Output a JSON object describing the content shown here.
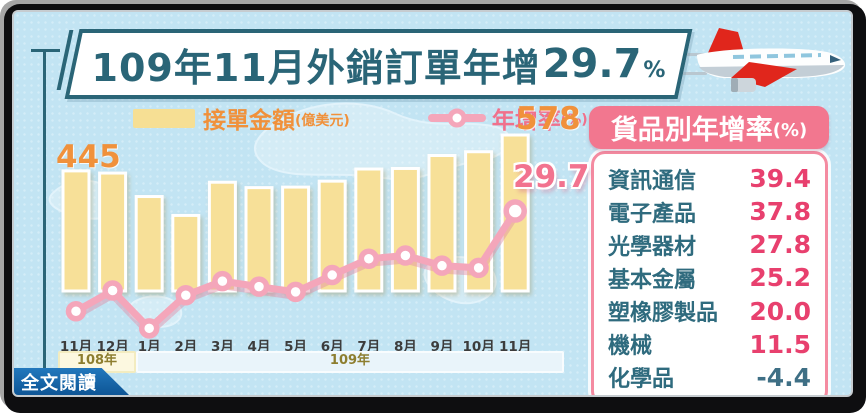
{
  "header": {
    "title_prefix": "109年11月外銷訂單年增",
    "title_value": "29.7",
    "title_unit": "%"
  },
  "legend": {
    "bar_label": "接單金額",
    "bar_unit": "(億美元)",
    "line_label": "年增率",
    "line_unit": "(%)"
  },
  "annotations": {
    "first_bar_value": "445",
    "last_bar_value": "578",
    "last_line_value": "29.7"
  },
  "chart_data": {
    "type": "bar",
    "title": "109年11月外銷訂單年增29.7%",
    "categories": [
      "11月",
      "12月",
      "1月",
      "2月",
      "3月",
      "4月",
      "5月",
      "6月",
      "7月",
      "8月",
      "9月",
      "10月",
      "11月"
    ],
    "series": [
      {
        "name": "接單金額(億美元)",
        "type": "bar",
        "values": [
          445,
          437,
          350,
          280,
          403,
          383,
          385,
          407,
          452,
          454,
          502,
          516,
          578
        ]
      },
      {
        "name": "年增率(%)",
        "type": "line",
        "values": [
          -6.6,
          0.9,
          -12.8,
          -0.8,
          4.3,
          2.3,
          0.4,
          6.5,
          12.4,
          13.6,
          9.9,
          9.1,
          29.7
        ]
      }
    ],
    "x_groups": [
      {
        "label": "108年",
        "span": 2
      },
      {
        "label": "109年",
        "span": 11
      }
    ],
    "ylim_bar": [
      0,
      600
    ],
    "ylim_line": [
      -15,
      32
    ],
    "grid": false,
    "legend_position": "top",
    "labeled_points": {
      "first_bar": 445,
      "last_bar": 578,
      "last_line": 29.7
    }
  },
  "side_panel": {
    "title": "貨品別年增率",
    "title_unit": "(%)",
    "items": [
      {
        "label": "資訊通信",
        "value": "39.4"
      },
      {
        "label": "電子產品",
        "value": "37.8"
      },
      {
        "label": "光學器材",
        "value": "27.8"
      },
      {
        "label": "基本金屬",
        "value": "25.2"
      },
      {
        "label": "塑橡膠製品",
        "value": "20.0"
      },
      {
        "label": "機械",
        "value": "11.5"
      },
      {
        "label": "化學品",
        "value": "-4.4"
      }
    ]
  },
  "footer": {
    "read_more_label": "全文閱讀"
  },
  "colors": {
    "background": "#c2e4f3",
    "title_teal": "#2a6577",
    "accent_orange": "#f0913b",
    "bar_fill": "#f7e098",
    "line_pink": "#f4a6ba",
    "annotation_pink": "#f2738f",
    "panel_pink": "#f2778f",
    "value_pink": "#e8406e",
    "item_teal": "#2f6b7e",
    "banner_blue": "#1268ae",
    "plane_red": "#e0261c"
  }
}
